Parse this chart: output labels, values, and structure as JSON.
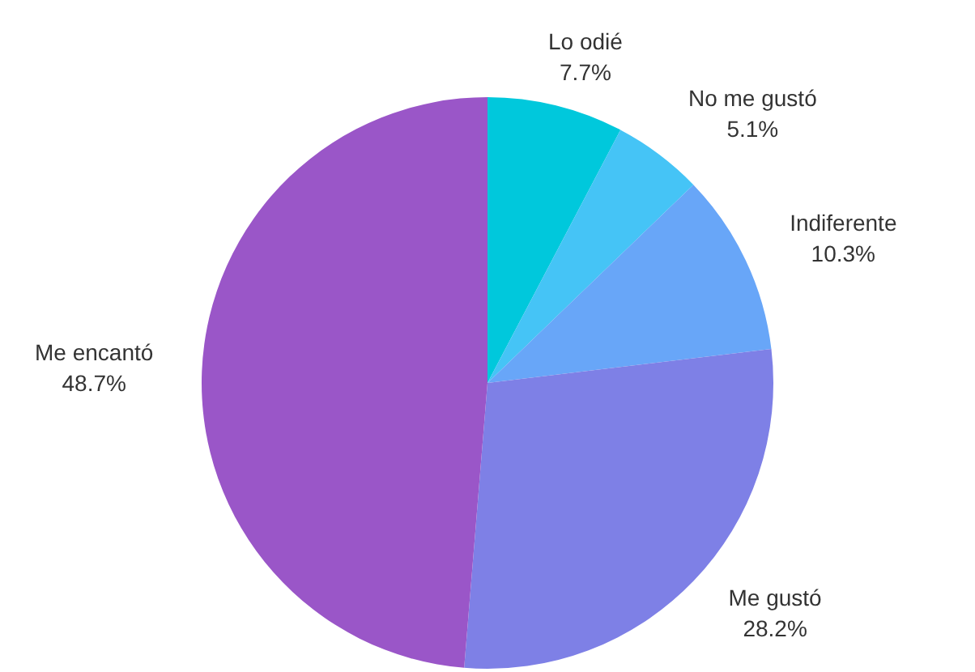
{
  "chart_data": {
    "type": "pie",
    "categories": [
      "Lo odié",
      "No me gustó",
      "Indiferente",
      "Me gustó",
      "Me encantó"
    ],
    "values": [
      7.7,
      5.1,
      10.3,
      28.2,
      48.7
    ],
    "value_labels": [
      "7.7%",
      "5.1%",
      "10.3%",
      "28.2%",
      "48.7%"
    ],
    "colors": [
      "#00c8dc",
      "#45c4f6",
      "#68a6f8",
      "#7e80e6",
      "#9a56c8"
    ],
    "legend": false
  }
}
